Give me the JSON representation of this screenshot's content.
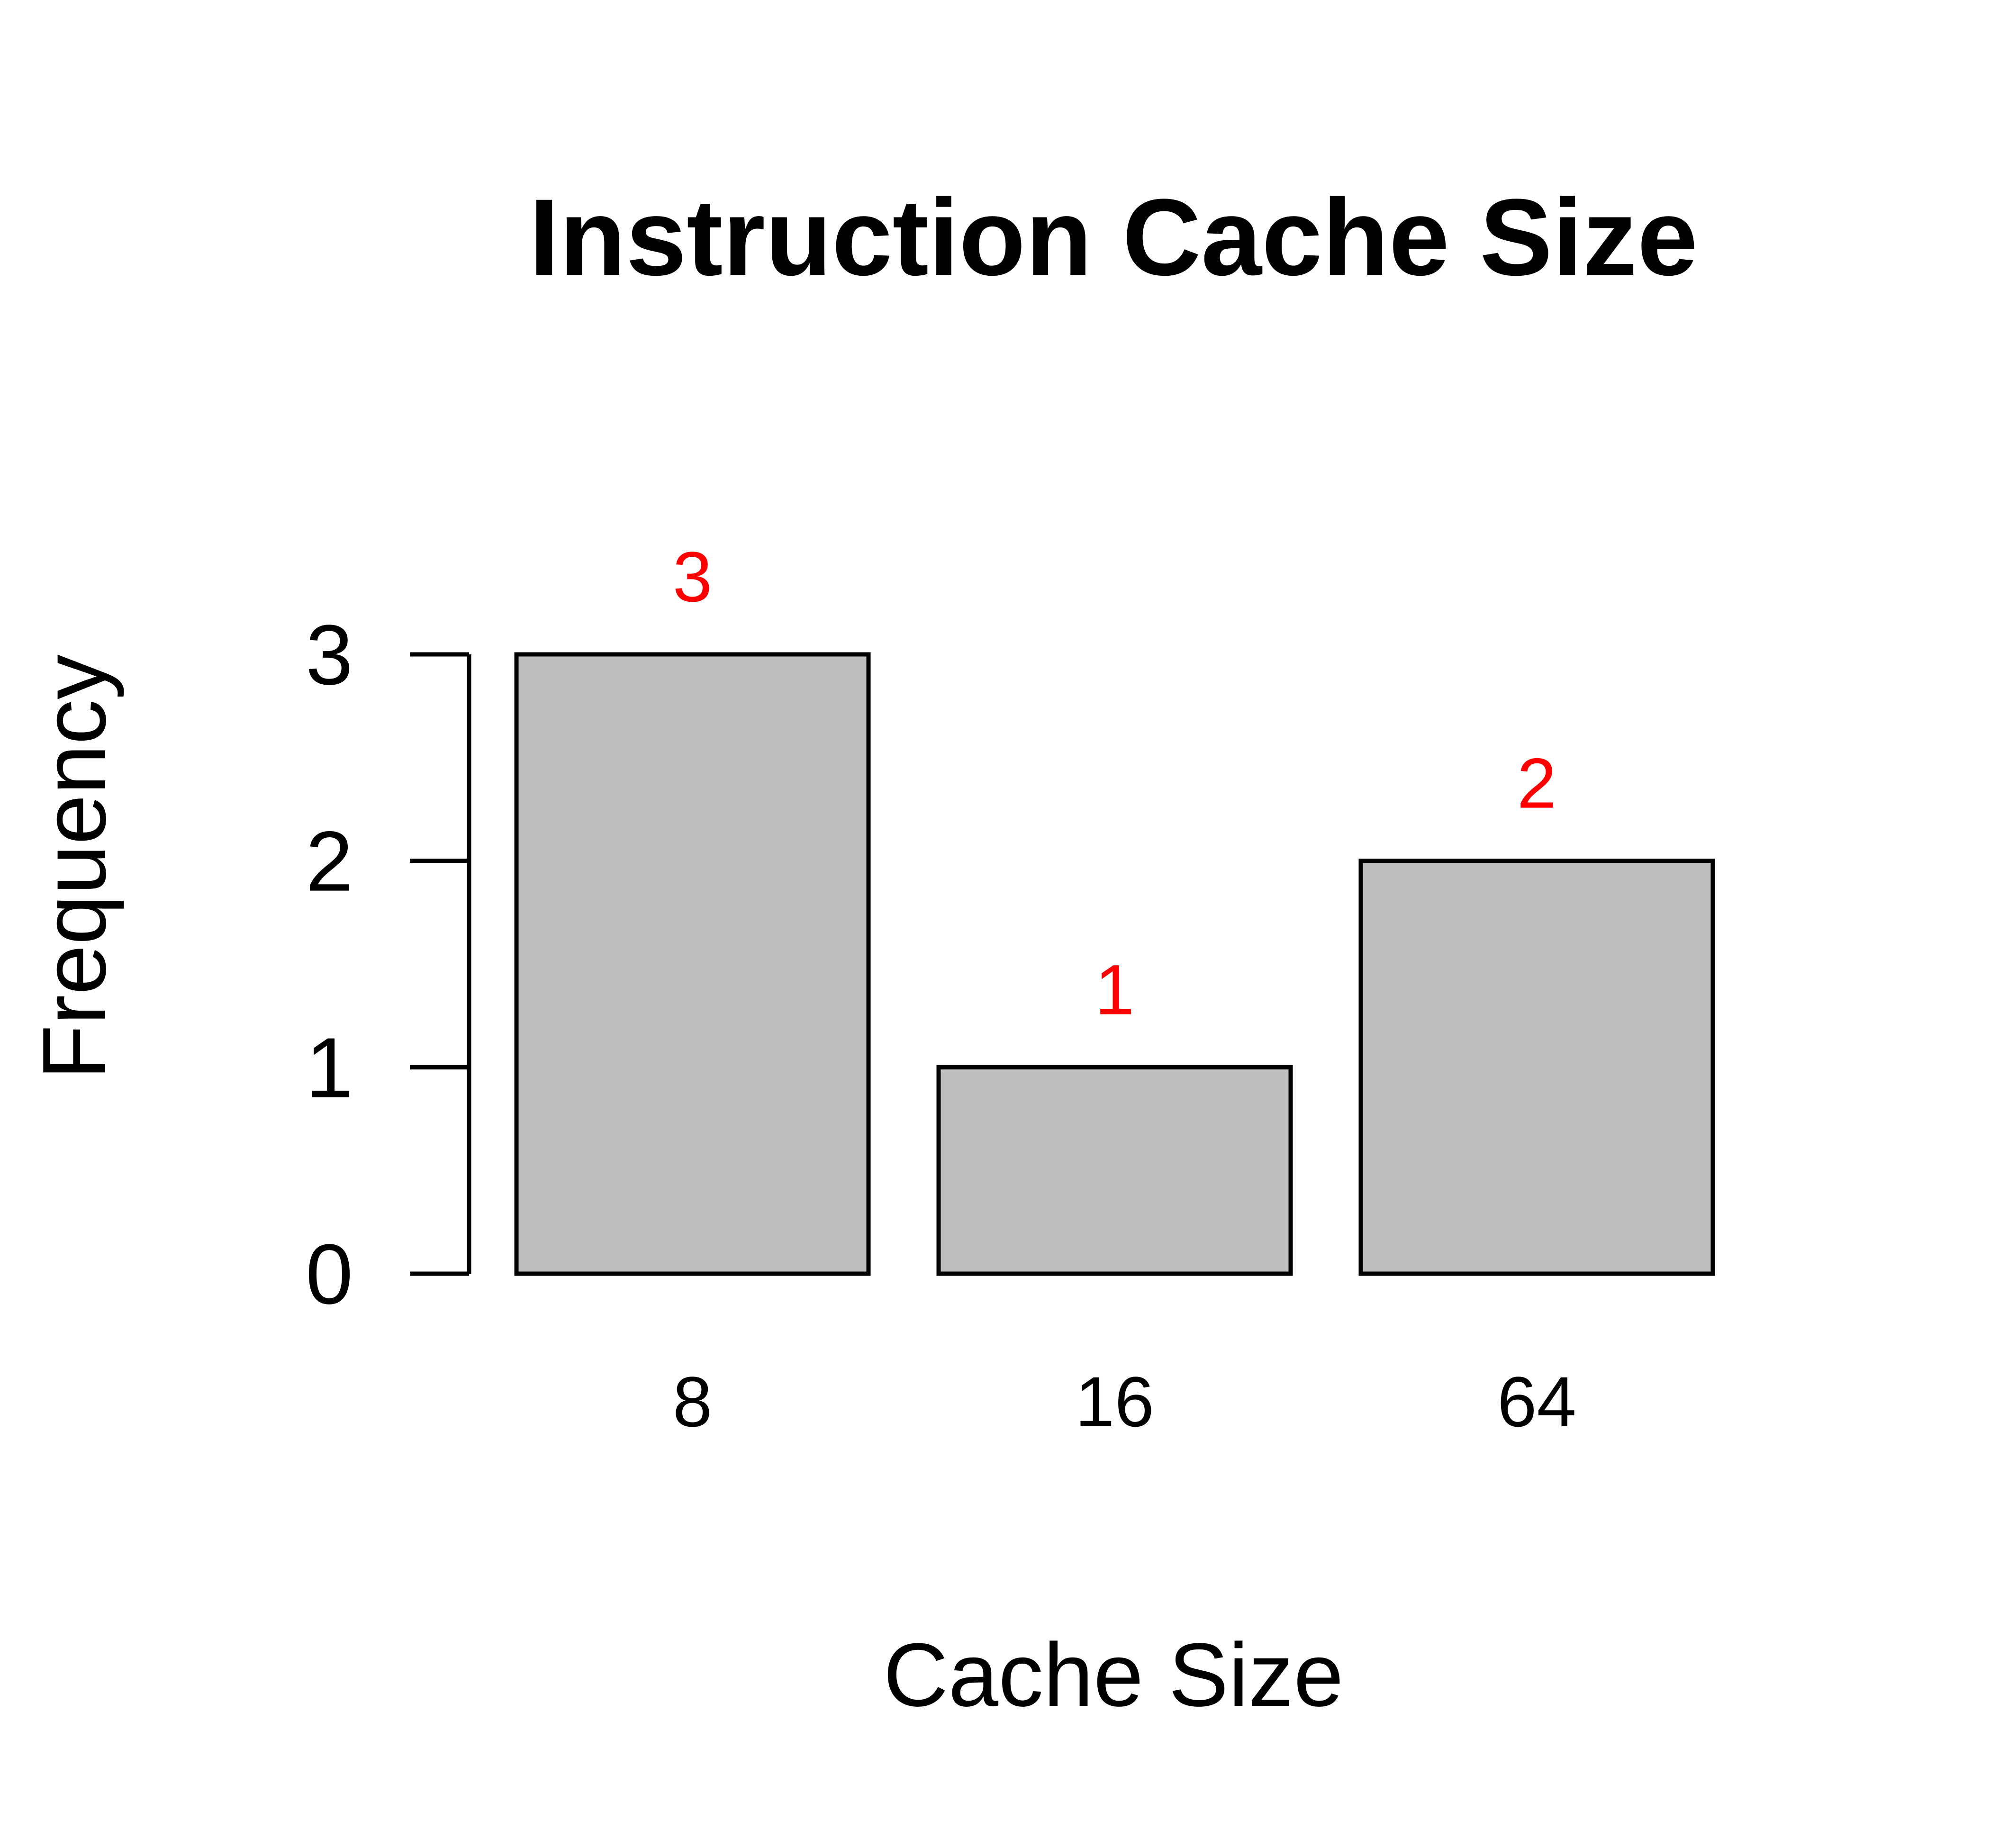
{
  "chart_data": {
    "type": "bar",
    "title": "Instruction Cache Size",
    "xlabel": "Cache Size",
    "ylabel": "Frequency",
    "categories": [
      "8",
      "16",
      "64"
    ],
    "values": [
      3,
      1,
      2
    ],
    "data_labels": [
      "3",
      "1",
      "2"
    ],
    "ylim": [
      0,
      3
    ],
    "yticks": [
      "0",
      "1",
      "2",
      "3"
    ],
    "grid": false,
    "bar_color": "#bebebe",
    "label_color": "#ff0000"
  }
}
